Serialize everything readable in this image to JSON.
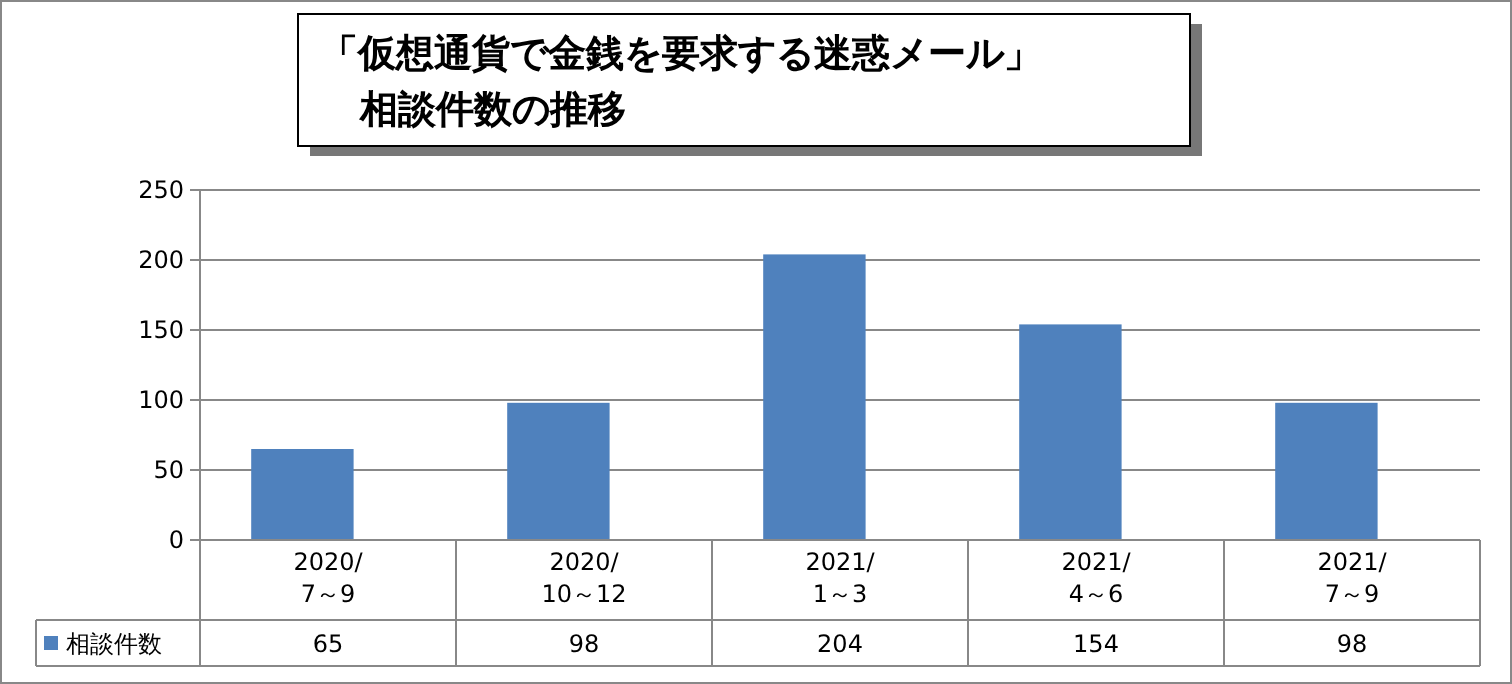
{
  "chart_data": {
    "type": "bar",
    "title": "「仮想通貨で金銭を要求する迷惑メール」",
    "subtitle": "相談件数の推移",
    "categories": [
      "2020/\n7～9",
      "2020/\n10～12",
      "2021/\n1～3",
      "2021/\n4～6",
      "2021/\n7～9"
    ],
    "series": [
      {
        "name": "相談件数",
        "color": "#4f81bd",
        "values": [
          65,
          98,
          204,
          154,
          98
        ]
      }
    ],
    "ylim": [
      0,
      250
    ],
    "yticks": [
      0,
      50,
      100,
      150,
      200,
      250
    ],
    "grid": "y",
    "data_labels": true
  }
}
